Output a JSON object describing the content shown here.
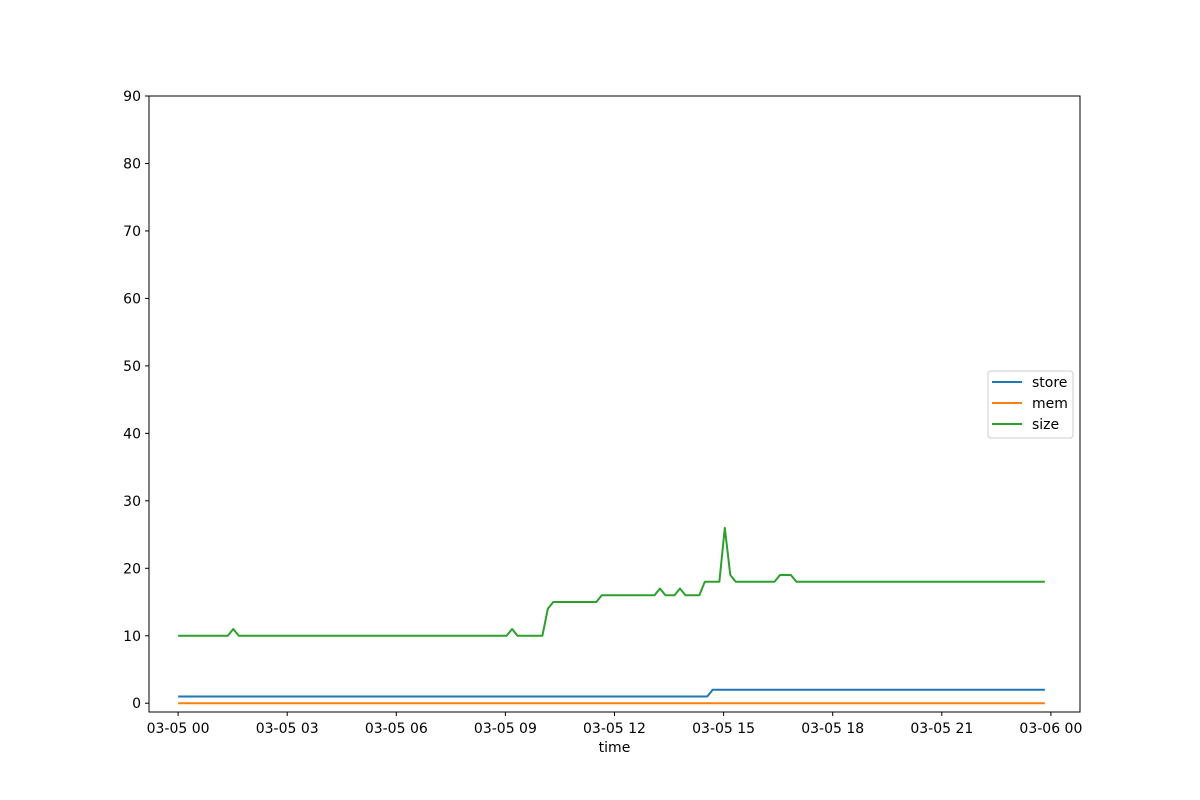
{
  "chart_data": {
    "type": "line",
    "title": "",
    "xlabel": "time",
    "ylabel": "",
    "ylim": [
      -1.3,
      90
    ],
    "xlim": [
      "2024-03-04 23:12",
      "2024-03-06 00:48"
    ],
    "grid": false,
    "legend_placement": "center-right",
    "yticks": [
      0,
      10,
      20,
      30,
      40,
      50,
      60,
      70,
      80,
      90
    ],
    "xticks": [
      {
        "t": "2024-03-05 00:00",
        "label": "03-05 00"
      },
      {
        "t": "2024-03-05 03:00",
        "label": "03-05 03"
      },
      {
        "t": "2024-03-05 06:00",
        "label": "03-05 06"
      },
      {
        "t": "2024-03-05 09:00",
        "label": "03-05 09"
      },
      {
        "t": "2024-03-05 12:00",
        "label": "03-05 12"
      },
      {
        "t": "2024-03-05 15:00",
        "label": "03-05 15"
      },
      {
        "t": "2024-03-05 18:00",
        "label": "03-05 18"
      },
      {
        "t": "2024-03-05 21:00",
        "label": "03-05 21"
      },
      {
        "t": "2024-03-06 00:00",
        "label": "03-06 00"
      }
    ],
    "series": [
      {
        "name": "store",
        "color": "#1f77b4",
        "points": [
          [
            "2024-03-05 00:00",
            1
          ],
          [
            "2024-03-05 14:33",
            1
          ],
          [
            "2024-03-05 14:42",
            2
          ],
          [
            "2024-03-05 23:50",
            2
          ]
        ]
      },
      {
        "name": "mem",
        "color": "#ff7f0e",
        "points": [
          [
            "2024-03-05 00:00",
            0
          ],
          [
            "2024-03-05 23:50",
            0
          ]
        ]
      },
      {
        "name": "size",
        "color": "#2ca02c",
        "points": [
          [
            "2024-03-05 00:00",
            10
          ],
          [
            "2024-03-05 01:22",
            10
          ],
          [
            "2024-03-05 01:31",
            11
          ],
          [
            "2024-03-05 01:40",
            10
          ],
          [
            "2024-03-05 09:02",
            10
          ],
          [
            "2024-03-05 09:11",
            11
          ],
          [
            "2024-03-05 09:20",
            10
          ],
          [
            "2024-03-05 10:01",
            10
          ],
          [
            "2024-03-05 10:10",
            14
          ],
          [
            "2024-03-05 10:19",
            15
          ],
          [
            "2024-03-05 11:30",
            15
          ],
          [
            "2024-03-05 11:39",
            16
          ],
          [
            "2024-03-05 13:06",
            16
          ],
          [
            "2024-03-05 13:15",
            17
          ],
          [
            "2024-03-05 13:24",
            16
          ],
          [
            "2024-03-05 13:39",
            16
          ],
          [
            "2024-03-05 13:48",
            17
          ],
          [
            "2024-03-05 13:57",
            16
          ],
          [
            "2024-03-05 14:20",
            16
          ],
          [
            "2024-03-05 14:29",
            18
          ],
          [
            "2024-03-05 14:53",
            18
          ],
          [
            "2024-03-05 15:02",
            26
          ],
          [
            "2024-03-05 15:11",
            19
          ],
          [
            "2024-03-05 15:20",
            18
          ],
          [
            "2024-03-05 16:24",
            18
          ],
          [
            "2024-03-05 16:33",
            19
          ],
          [
            "2024-03-05 16:51",
            19
          ],
          [
            "2024-03-05 17:00",
            18
          ],
          [
            "2024-03-05 23:50",
            18
          ]
        ]
      }
    ]
  }
}
